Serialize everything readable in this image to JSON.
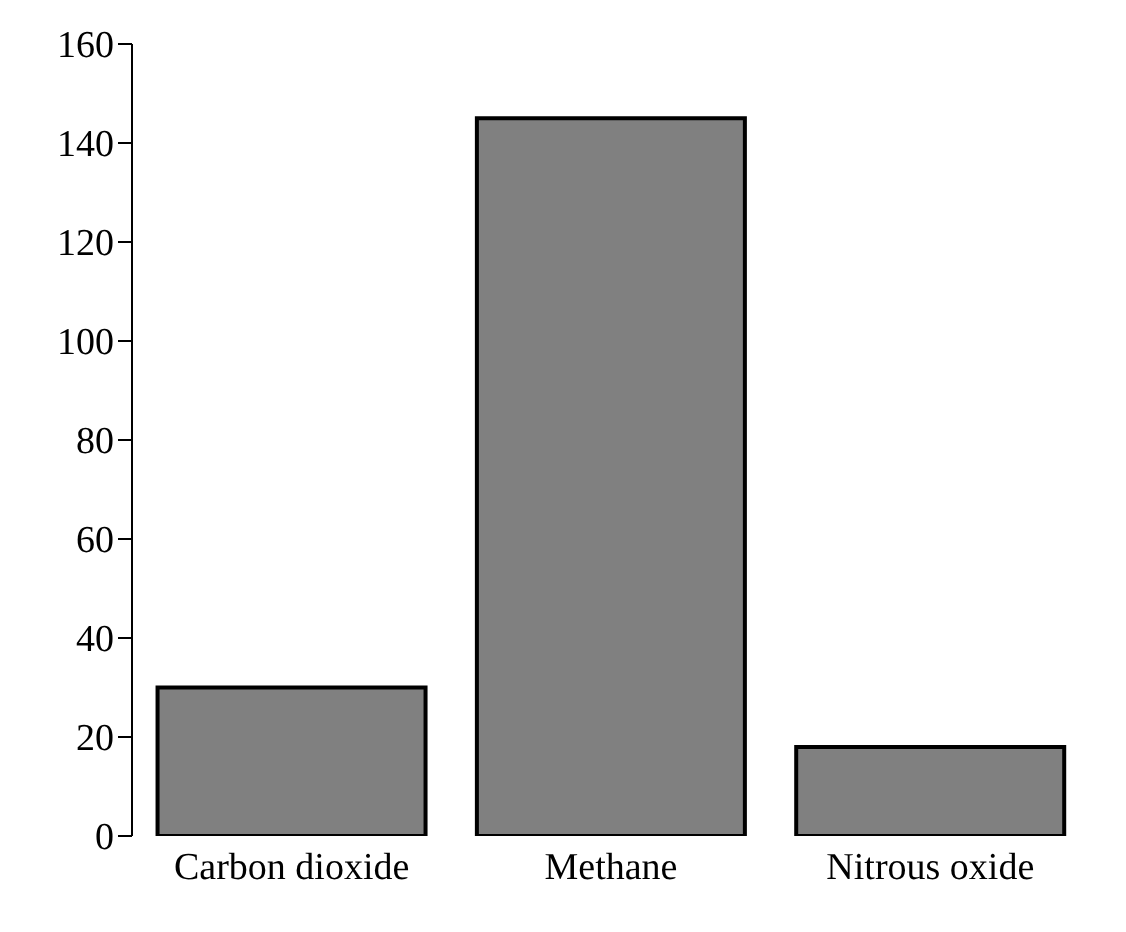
{
  "chart_data": {
    "type": "bar",
    "categories": [
      "Carbon dioxide",
      "Methane",
      "Nitrous oxide"
    ],
    "values": [
      30,
      145,
      18
    ],
    "color": "#808080",
    "ylim": [
      0,
      160
    ],
    "yticks": [
      0,
      20,
      40,
      60,
      80,
      100,
      120,
      140,
      160
    ],
    "grid": false
  }
}
